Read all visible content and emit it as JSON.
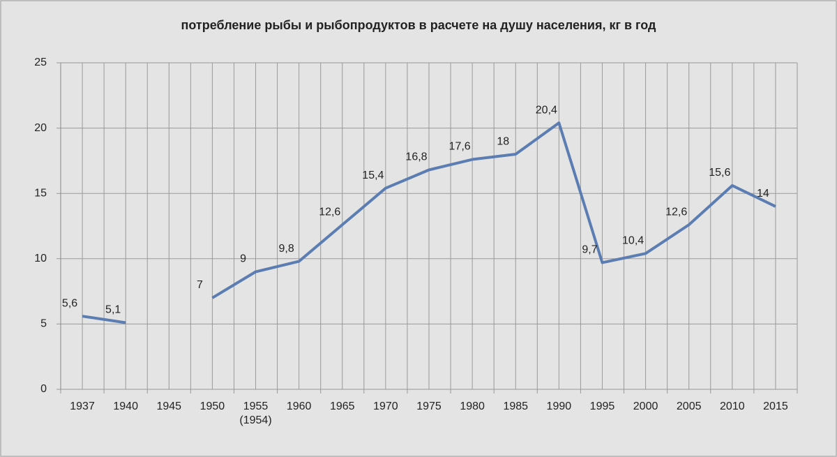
{
  "chart_data": {
    "type": "line",
    "title": "потребление рыбы и рыбопродуктов в расчете на душу населения, кг в год",
    "categories": [
      "1937",
      "1940",
      "1945",
      "1950",
      "1955\n(1954)",
      "1960",
      "1965",
      "1970",
      "1975",
      "1980",
      "1985",
      "1990",
      "1995",
      "2000",
      "2005",
      "2010",
      "2015"
    ],
    "series": [
      {
        "name": "потребление",
        "color": "#5b7db2",
        "values": [
          5.6,
          5.1,
          null,
          7,
          9,
          9.8,
          12.6,
          15.4,
          16.8,
          17.6,
          18,
          20.4,
          9.7,
          10.4,
          12.6,
          15.6,
          14
        ],
        "value_labels": [
          "5,6",
          "5,1",
          null,
          "7",
          "9",
          "9,8",
          "12,6",
          "15,4",
          "16,8",
          "17,6",
          "18",
          "20,4",
          "9,7",
          "10,4",
          "12,6",
          "15,6",
          "14"
        ]
      }
    ],
    "ylim": [
      0,
      25
    ],
    "yticks": [
      0,
      5,
      10,
      15,
      20,
      25
    ],
    "grid": true
  }
}
